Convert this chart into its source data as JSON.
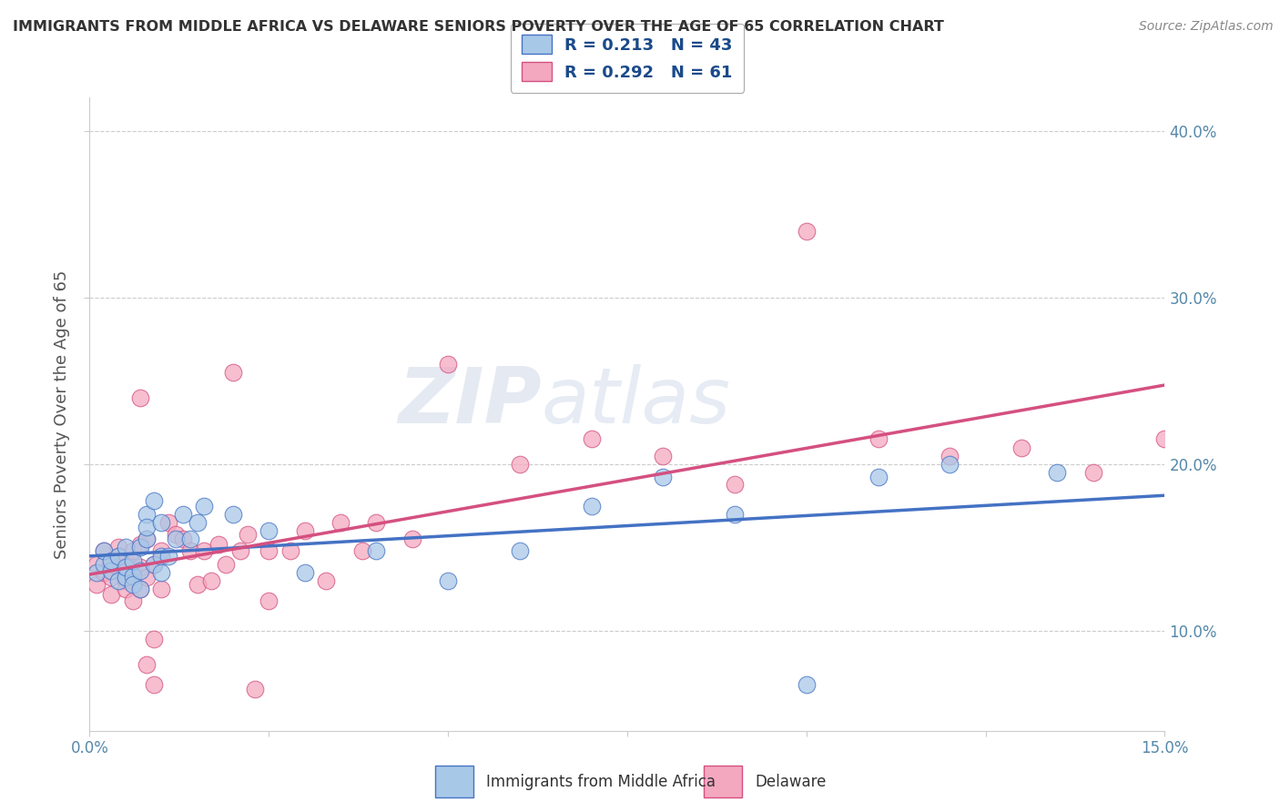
{
  "title": "IMMIGRANTS FROM MIDDLE AFRICA VS DELAWARE SENIORS POVERTY OVER THE AGE OF 65 CORRELATION CHART",
  "source": "Source: ZipAtlas.com",
  "ylabel": "Seniors Poverty Over the Age of 65",
  "xlabel_blue": "Immigrants from Middle Africa",
  "xlabel_pink": "Delaware",
  "legend_blue_r": "R = 0.213",
  "legend_blue_n": "N = 43",
  "legend_pink_r": "R = 0.292",
  "legend_pink_n": "N = 61",
  "xlim": [
    0.0,
    0.15
  ],
  "ylim": [
    0.04,
    0.42
  ],
  "color_blue": "#a8c8e8",
  "color_pink": "#f4a8c0",
  "line_color_blue": "#4472c4",
  "line_color_pink": "#d45080",
  "watermark_zip": "ZIP",
  "watermark_atlas": "atlas",
  "blue_x": [
    0.001,
    0.002,
    0.002,
    0.003,
    0.003,
    0.004,
    0.004,
    0.005,
    0.005,
    0.005,
    0.006,
    0.006,
    0.006,
    0.007,
    0.007,
    0.007,
    0.008,
    0.008,
    0.008,
    0.009,
    0.009,
    0.01,
    0.01,
    0.01,
    0.011,
    0.012,
    0.013,
    0.014,
    0.015,
    0.016,
    0.02,
    0.025,
    0.03,
    0.04,
    0.05,
    0.06,
    0.07,
    0.08,
    0.09,
    0.1,
    0.11,
    0.12,
    0.135
  ],
  "blue_y": [
    0.135,
    0.14,
    0.148,
    0.136,
    0.142,
    0.13,
    0.145,
    0.132,
    0.138,
    0.15,
    0.133,
    0.128,
    0.142,
    0.136,
    0.15,
    0.125,
    0.17,
    0.155,
    0.162,
    0.14,
    0.178,
    0.145,
    0.135,
    0.165,
    0.145,
    0.155,
    0.17,
    0.155,
    0.165,
    0.175,
    0.17,
    0.16,
    0.135,
    0.148,
    0.13,
    0.148,
    0.175,
    0.192,
    0.17,
    0.068,
    0.192,
    0.2,
    0.195
  ],
  "pink_x": [
    0.001,
    0.001,
    0.002,
    0.002,
    0.003,
    0.003,
    0.003,
    0.004,
    0.004,
    0.004,
    0.005,
    0.005,
    0.005,
    0.006,
    0.006,
    0.006,
    0.007,
    0.007,
    0.007,
    0.008,
    0.008,
    0.009,
    0.009,
    0.01,
    0.01,
    0.011,
    0.012,
    0.013,
    0.014,
    0.015,
    0.016,
    0.017,
    0.018,
    0.019,
    0.02,
    0.021,
    0.022,
    0.023,
    0.025,
    0.028,
    0.03,
    0.033,
    0.035,
    0.038,
    0.04,
    0.045,
    0.05,
    0.06,
    0.07,
    0.08,
    0.09,
    0.1,
    0.11,
    0.12,
    0.13,
    0.14,
    0.15,
    0.025,
    0.007,
    0.008,
    0.009
  ],
  "pink_y": [
    0.14,
    0.128,
    0.135,
    0.148,
    0.14,
    0.132,
    0.122,
    0.145,
    0.138,
    0.15,
    0.13,
    0.142,
    0.125,
    0.135,
    0.148,
    0.118,
    0.138,
    0.152,
    0.125,
    0.155,
    0.132,
    0.14,
    0.095,
    0.148,
    0.125,
    0.165,
    0.158,
    0.155,
    0.148,
    0.128,
    0.148,
    0.13,
    0.152,
    0.14,
    0.255,
    0.148,
    0.158,
    0.065,
    0.148,
    0.148,
    0.16,
    0.13,
    0.165,
    0.148,
    0.165,
    0.155,
    0.26,
    0.2,
    0.215,
    0.205,
    0.188,
    0.34,
    0.215,
    0.205,
    0.21,
    0.195,
    0.215,
    0.118,
    0.24,
    0.08,
    0.068
  ]
}
